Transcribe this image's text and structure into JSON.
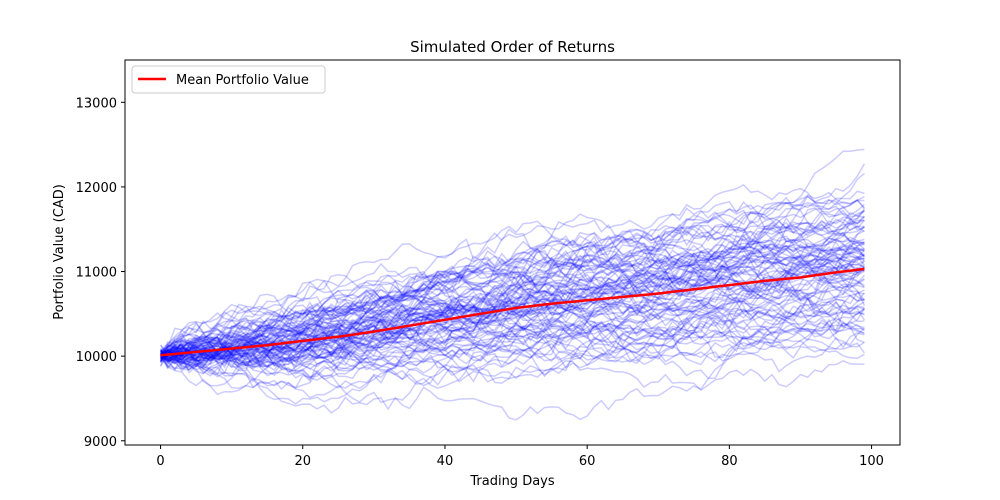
{
  "chart_data": {
    "type": "line",
    "title": "Simulated Order of Returns",
    "xlabel": "Trading Days",
    "ylabel": "Portfolio Value (CAD)",
    "xlim": [
      -5,
      104
    ],
    "ylim": [
      8950,
      13500
    ],
    "x_ticks": [
      0,
      20,
      40,
      60,
      80,
      100
    ],
    "x_tick_labels": [
      "0",
      "20",
      "40",
      "60",
      "80",
      "100"
    ],
    "y_ticks": [
      9000,
      10000,
      11000,
      12000,
      13000
    ],
    "y_tick_labels": [
      "9000",
      "10000",
      "11000",
      "12000",
      "13000"
    ],
    "grid": false,
    "legend_position": "top-left",
    "legend": [
      {
        "label": "Mean Portfolio Value",
        "color": "#ff0000"
      }
    ],
    "simulation": {
      "num_paths": 100,
      "num_days": 100,
      "start_value": 10000,
      "path_color": "#0000ff",
      "path_opacity": 0.2
    },
    "series": [
      {
        "name": "Mean Portfolio Value",
        "color": "#ff0000",
        "x": [
          0,
          5,
          10,
          15,
          20,
          25,
          30,
          35,
          40,
          45,
          50,
          55,
          60,
          65,
          70,
          75,
          80,
          85,
          90,
          95,
          99
        ],
        "values": [
          10010,
          10050,
          10090,
          10130,
          10180,
          10230,
          10290,
          10360,
          10430,
          10500,
          10570,
          10620,
          10660,
          10700,
          10740,
          10790,
          10840,
          10890,
          10930,
          10990,
          11030
        ]
      }
    ]
  }
}
